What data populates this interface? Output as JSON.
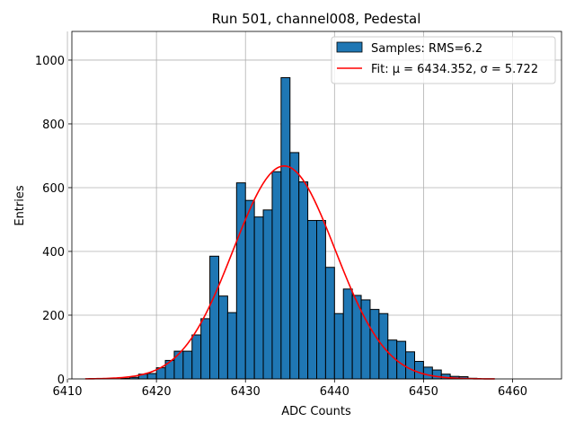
{
  "chart_data": {
    "type": "bar",
    "title": "Run 501, channel008, Pedestal",
    "xlabel": "ADC Counts",
    "ylabel": "Entries",
    "xlim": [
      6410.5,
      6465.5
    ],
    "ylim": [
      0,
      1090
    ],
    "xticks": [
      6410,
      6420,
      6430,
      6440,
      6450,
      6460
    ],
    "yticks": [
      0,
      200,
      400,
      600,
      800,
      1000
    ],
    "grid": true,
    "legend_position": "top-right",
    "histogram": {
      "name": "Samples: RMS=6.2",
      "color": "#1f77b4",
      "edge_color": "#000000",
      "bin_edges": [
        6416,
        6417,
        6418,
        6419,
        6420,
        6421,
        6422,
        6423,
        6424,
        6425,
        6426,
        6427,
        6428,
        6429,
        6430,
        6431,
        6432,
        6433,
        6434,
        6435,
        6436,
        6437,
        6438,
        6439,
        6440,
        6441,
        6442,
        6443,
        6444,
        6445,
        6446,
        6447,
        6448,
        6449,
        6450,
        6451,
        6452,
        6453,
        6454,
        6455,
        6456
      ],
      "counts": [
        2,
        5,
        15,
        17,
        35,
        58,
        87,
        87,
        138,
        189,
        385,
        260,
        208,
        615,
        560,
        508,
        530,
        650,
        945,
        710,
        618,
        497,
        497,
        350,
        205,
        282,
        262,
        248,
        218,
        205,
        122,
        118,
        85,
        55,
        37,
        28,
        15,
        8,
        7,
        2
      ]
    },
    "fit": {
      "name": "Fit: μ = 6434.352, σ = 5.722",
      "color": "#ff0000",
      "mu": 6434.352,
      "sigma": 5.722,
      "amplitude": 668,
      "x_range": [
        6412,
        6458
      ]
    }
  }
}
